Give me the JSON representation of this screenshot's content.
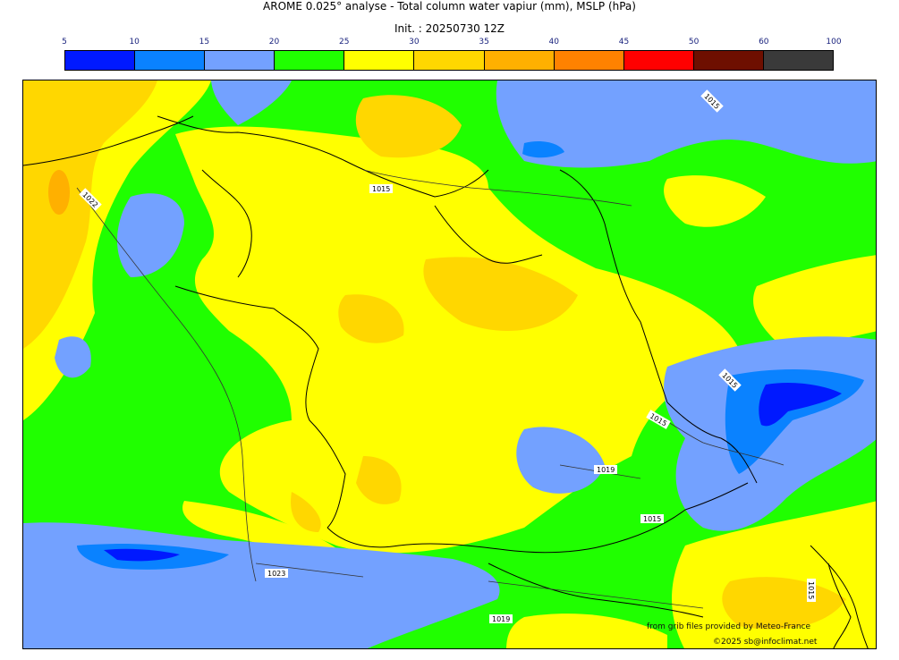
{
  "title": {
    "line1": "AROME 0.025° analyse - Total column water vapiur (mm), MSLP (hPa)",
    "line2": "Init. : 20250730 12Z"
  },
  "colorbar": {
    "ticks": [
      "5",
      "10",
      "15",
      "20",
      "25",
      "30",
      "35",
      "40",
      "45",
      "50",
      "60",
      "100"
    ],
    "colors": [
      "#0019ff",
      "#0a82ff",
      "#73a1ff",
      "#20ff00",
      "#ffff00",
      "#ffd700",
      "#ffb000",
      "#ff8200",
      "#ff0000",
      "#6e0f00",
      "#3a3a3a"
    ]
  },
  "map": {
    "fill_colors": {
      "green": "#20ff00",
      "yellow": "#ffff00",
      "gold": "#ffd700",
      "orange": "#ffb000",
      "lightblue": "#73a1ff",
      "blue": "#0a82ff",
      "darkblue": "#0019ff"
    },
    "isobar_labels": [
      "1015",
      "1022",
      "1015",
      "1015",
      "1015",
      "1019",
      "1015",
      "1023",
      "1019",
      "1015"
    ]
  },
  "credits": {
    "source": "from grib files provided by Meteo-France",
    "copyright": "©2025 sb@infoclimat.net"
  }
}
